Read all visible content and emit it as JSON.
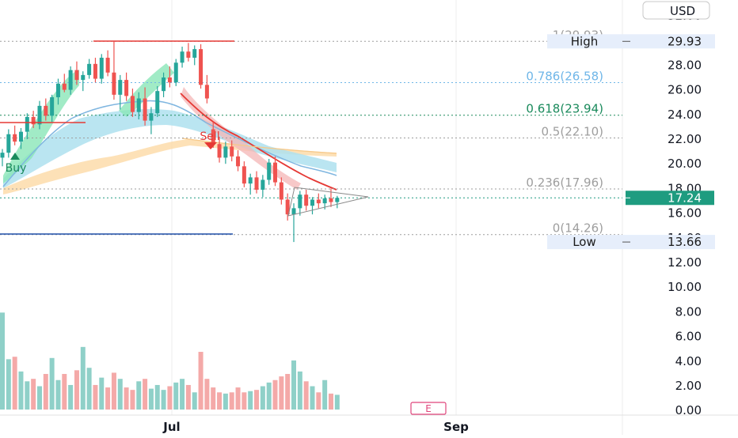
{
  "chart_data": {
    "type": "candlestick",
    "currency_label": "USD",
    "x_axis": {
      "labels": [
        "Jul",
        "Sep"
      ]
    },
    "y_axis": {
      "ticks": [
        "32.00",
        "30.00",
        "28.00",
        "26.00",
        "24.00",
        "22.00",
        "20.00",
        "18.00",
        "16.00",
        "14.00",
        "12.00",
        "10.00",
        "8.00",
        "6.00",
        "4.00",
        "2.00",
        "0.00"
      ]
    },
    "price_range": [
      10,
      32
    ],
    "volume_range": [
      0,
      8
    ],
    "price_tags": [
      {
        "label": "High",
        "value": "29.93",
        "price": 29.93,
        "bg": "#e6eefb",
        "fg": "#1a1a1a"
      },
      {
        "label": "",
        "value": "17.24",
        "price": 17.24,
        "bg": "#1e9c80",
        "fg": "#ffffff"
      },
      {
        "label": "Low",
        "value": "13.66",
        "price": 13.66,
        "bg": "#e6eefb",
        "fg": "#1a1a1a"
      }
    ],
    "fib_levels": [
      {
        "ratio": "1",
        "text": "1(29.93)",
        "price": 29.93,
        "color": "#9e9e9e"
      },
      {
        "ratio": "0.786",
        "text": "0.786(26.58)",
        "price": 26.58,
        "color": "#6fb6e8"
      },
      {
        "ratio": "0.618",
        "text": "0.618(23.94)",
        "price": 23.94,
        "color": "#1a8a5c"
      },
      {
        "ratio": "0.5",
        "text": "0.5(22.10)",
        "price": 22.1,
        "color": "#9e9e9e"
      },
      {
        "ratio": "0.236",
        "text": "0.236(17.96)",
        "price": 17.96,
        "color": "#9e9e9e"
      },
      {
        "ratio": "0",
        "text": "0(14.26)",
        "price": 14.26,
        "color": "#9e9e9e"
      }
    ],
    "signals": [
      {
        "label": "Buy",
        "color": "#1a8a5c"
      },
      {
        "label": "Sell",
        "color": "#e53935"
      }
    ],
    "event_marker": "E",
    "colors": {
      "up": "#26a69a",
      "down": "#ef5350",
      "vol_up": "#8fd0c8",
      "vol_down": "#f4a9a8"
    },
    "candles": [
      [
        20.5,
        21.2,
        19.8,
        20.9
      ],
      [
        20.9,
        22.8,
        20.5,
        22.4
      ],
      [
        22.4,
        23.1,
        21.5,
        21.8
      ],
      [
        21.8,
        22.9,
        21.2,
        22.6
      ],
      [
        22.6,
        24.1,
        22.0,
        23.8
      ],
      [
        23.8,
        24.3,
        22.9,
        23.2
      ],
      [
        23.2,
        25.1,
        22.8,
        24.7
      ],
      [
        24.7,
        25.3,
        23.5,
        23.9
      ],
      [
        23.9,
        25.6,
        23.4,
        25.4
      ],
      [
        25.4,
        26.9,
        24.8,
        26.5
      ],
      [
        26.5,
        27.3,
        25.8,
        26.0
      ],
      [
        26.0,
        27.9,
        25.6,
        27.6
      ],
      [
        27.6,
        28.3,
        26.4,
        26.8
      ],
      [
        26.8,
        27.5,
        25.9,
        27.2
      ],
      [
        27.2,
        28.5,
        26.9,
        28.1
      ],
      [
        28.1,
        28.6,
        26.6,
        26.9
      ],
      [
        26.9,
        28.9,
        26.5,
        28.6
      ],
      [
        28.6,
        29.2,
        27.1,
        27.4
      ],
      [
        27.4,
        29.93,
        25.2,
        25.6
      ],
      [
        25.6,
        27.2,
        24.4,
        26.8
      ],
      [
        26.8,
        27.4,
        25.1,
        25.5
      ],
      [
        25.5,
        26.1,
        23.8,
        24.2
      ],
      [
        24.2,
        25.8,
        23.6,
        25.3
      ],
      [
        25.3,
        26.2,
        23.1,
        23.5
      ],
      [
        23.5,
        24.6,
        22.4,
        24.1
      ],
      [
        24.1,
        26.3,
        23.8,
        25.9
      ],
      [
        25.9,
        27.4,
        25.4,
        27.0
      ],
      [
        27.0,
        27.9,
        26.2,
        26.6
      ],
      [
        26.6,
        28.5,
        26.3,
        28.2
      ],
      [
        28.2,
        29.5,
        27.8,
        29.1
      ],
      [
        29.1,
        29.8,
        28.3,
        28.6
      ],
      [
        28.6,
        29.6,
        28.0,
        29.3
      ],
      [
        29.3,
        29.7,
        26.1,
        26.4
      ],
      [
        26.4,
        27.2,
        24.9,
        25.3
      ],
      [
        22.8,
        23.4,
        21.3,
        21.6
      ],
      [
        21.6,
        22.2,
        20.1,
        20.5
      ],
      [
        20.5,
        21.8,
        20.0,
        21.4
      ],
      [
        21.4,
        21.9,
        20.2,
        20.6
      ],
      [
        20.6,
        21.1,
        19.4,
        19.8
      ],
      [
        19.8,
        20.2,
        18.1,
        18.4
      ],
      [
        18.4,
        19.2,
        17.5,
        18.9
      ],
      [
        18.9,
        19.4,
        17.6,
        17.9
      ],
      [
        17.9,
        19.1,
        17.3,
        18.7
      ],
      [
        18.7,
        20.4,
        18.3,
        20.1
      ],
      [
        20.1,
        20.6,
        18.2,
        18.5
      ],
      [
        18.5,
        18.9,
        16.7,
        17.1
      ],
      [
        17.1,
        17.6,
        15.4,
        15.9
      ],
      [
        15.9,
        16.8,
        13.66,
        16.4
      ],
      [
        16.4,
        17.8,
        15.8,
        17.5
      ],
      [
        17.5,
        17.9,
        16.2,
        16.6
      ],
      [
        16.6,
        17.3,
        15.9,
        17.1
      ],
      [
        17.1,
        17.6,
        16.4,
        16.8
      ],
      [
        16.8,
        17.5,
        16.3,
        17.2
      ],
      [
        17.2,
        18.0,
        16.5,
        16.9
      ],
      [
        16.9,
        17.4,
        16.4,
        17.24
      ]
    ],
    "volumes": [
      7.9,
      4.1,
      4.3,
      3.1,
      2.3,
      2.5,
      1.9,
      2.9,
      4.2,
      2.4,
      2.9,
      2.0,
      3.2,
      5.1,
      3.4,
      2.0,
      2.6,
      1.8,
      3.0,
      2.5,
      1.8,
      1.6,
      2.3,
      2.5,
      1.7,
      2.0,
      1.6,
      1.9,
      2.2,
      2.5,
      2.0,
      1.4,
      4.7,
      2.5,
      1.8,
      1.4,
      1.3,
      1.4,
      1.8,
      1.4,
      1.5,
      1.6,
      1.9,
      2.2,
      2.4,
      2.7,
      2.9,
      4.0,
      3.1,
      2.3,
      1.9,
      1.4,
      2.4,
      1.3,
      1.2
    ]
  }
}
